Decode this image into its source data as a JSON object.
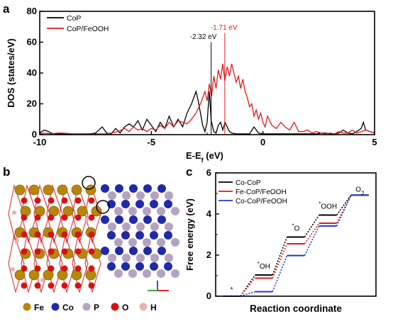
{
  "panels": {
    "a": {
      "label": "a"
    },
    "b": {
      "label": "b"
    },
    "c": {
      "label": "c"
    }
  },
  "chart_data": [
    {
      "panel": "a",
      "type": "line",
      "xlabel": "E-E",
      "xlabel_sub": "f",
      "xlabel_suffix": " (eV)",
      "ylabel": "DOS (states/eV)",
      "xlim": [
        -10,
        5
      ],
      "ylim": [
        0,
        80
      ],
      "xticks": [
        -10,
        -5,
        0,
        5
      ],
      "yticks": [
        0,
        20,
        40,
        60,
        80
      ],
      "legend": "top-left",
      "annotations": [
        {
          "text": "-2.32 eV",
          "x": -2.32,
          "color": "#000000"
        },
        {
          "text": "-1.71 eV",
          "x": -1.71,
          "color": "#e31a1c"
        }
      ],
      "series": [
        {
          "name": "CoP",
          "color": "#000000",
          "x": [
            -10,
            -9.8,
            -9.6,
            -9.5,
            -9.3,
            -9,
            -8.7,
            -8.5,
            -8.2,
            -8,
            -7.8,
            -7.5,
            -7.2,
            -7,
            -6.8,
            -6.6,
            -6.4,
            -6.2,
            -6,
            -5.8,
            -5.6,
            -5.4,
            -5.2,
            -5,
            -4.8,
            -4.6,
            -4.4,
            -4.2,
            -4,
            -3.8,
            -3.6,
            -3.4,
            -3.2,
            -3,
            -2.9,
            -2.8,
            -2.7,
            -2.6,
            -2.5,
            -2.4,
            -2.32,
            -2.2,
            -2.1,
            -2,
            -1.9,
            -1.8,
            -1.7,
            -1.6,
            -1.5,
            -1.4,
            -1.2,
            -1,
            -0.8,
            -0.6,
            -0.4,
            -0.2,
            0,
            0.2,
            0.4,
            0.6,
            0.8,
            1,
            1.2,
            1.4,
            1.6,
            1.8,
            2,
            2.2,
            2.4,
            2.6,
            2.8,
            3,
            3.2,
            3.4,
            3.6,
            3.8,
            4,
            4.2,
            4.4,
            4.5,
            4.6,
            4.8,
            5
          ],
          "y": [
            1,
            3,
            2,
            1,
            0.5,
            0.5,
            0.5,
            0.5,
            0.5,
            0.5,
            0.5,
            1,
            5,
            1,
            0.5,
            4,
            1,
            5,
            7,
            5,
            9,
            3,
            10,
            6,
            2,
            8,
            4,
            12,
            5,
            10,
            5,
            14,
            20,
            28,
            22,
            14,
            6,
            2,
            8,
            28,
            9,
            2,
            1,
            6,
            8,
            3,
            8,
            5,
            2,
            1,
            0.5,
            0.5,
            0.5,
            0.5,
            5,
            1,
            0.5,
            0.5,
            0.5,
            0.5,
            0.5,
            0.5,
            0.5,
            0.5,
            0.5,
            0.5,
            0.5,
            0.5,
            0.5,
            1,
            1,
            0.5,
            0.5,
            1,
            3,
            1,
            0.5,
            2,
            4,
            8,
            3,
            2,
            1
          ]
        },
        {
          "name": "CoP/FeOOH",
          "color": "#e31a1c",
          "x": [
            -10,
            -9.8,
            -9.5,
            -9.2,
            -9,
            -8.5,
            -8,
            -7.5,
            -7,
            -6.8,
            -6.5,
            -6.2,
            -6,
            -5.8,
            -5.6,
            -5.4,
            -5.2,
            -5,
            -4.8,
            -4.6,
            -4.4,
            -4.2,
            -4,
            -3.8,
            -3.6,
            -3.4,
            -3.2,
            -3,
            -2.8,
            -2.6,
            -2.5,
            -2.4,
            -2.3,
            -2.2,
            -2.1,
            -2,
            -1.9,
            -1.8,
            -1.71,
            -1.6,
            -1.5,
            -1.4,
            -1.3,
            -1.2,
            -1.1,
            -1,
            -0.9,
            -0.8,
            -0.7,
            -0.6,
            -0.5,
            -0.4,
            -0.3,
            -0.2,
            -0.1,
            0,
            0.1,
            0.2,
            0.4,
            0.6,
            0.8,
            1,
            1.2,
            1.4,
            1.6,
            1.8,
            2,
            2.2,
            2.4,
            2.6,
            2.8,
            3,
            3.2,
            3.4,
            3.6,
            3.8,
            4,
            4.2,
            4.4,
            4.6,
            4.8,
            5
          ],
          "y": [
            0.5,
            1,
            0.5,
            1,
            1,
            0.5,
            0.5,
            0.5,
            0.5,
            1,
            2,
            4,
            2,
            5,
            3,
            4,
            2,
            4,
            3,
            6,
            4,
            8,
            5,
            9,
            8,
            7,
            10,
            14,
            20,
            28,
            22,
            33,
            25,
            38,
            30,
            42,
            36,
            46,
            35,
            44,
            38,
            46,
            40,
            34,
            38,
            30,
            36,
            28,
            24,
            18,
            20,
            12,
            16,
            10,
            14,
            8,
            5,
            12,
            6,
            4,
            8,
            5,
            3,
            8,
            2,
            2,
            3,
            1,
            2,
            1,
            0.5,
            1,
            0.5,
            2,
            1,
            1,
            3,
            1,
            2,
            3,
            2,
            1
          ]
        }
      ]
    },
    {
      "panel": "c",
      "type": "line",
      "xlabel": "Reaction coordinate",
      "ylabel": "Free energy (eV)",
      "ylim": [
        0,
        6
      ],
      "yticks": [
        0,
        2,
        4,
        6
      ],
      "legend": "top-left",
      "steps": [
        "*",
        "*OH",
        "*O",
        "*OOH",
        "O2"
      ],
      "series": [
        {
          "name": "Co-CoP",
          "color": "#000000",
          "values": [
            0,
            1.03,
            2.88,
            3.95,
            4.92
          ]
        },
        {
          "name": "Fe-CoP/FeOOH",
          "color": "#e31a1c",
          "values": [
            0,
            0.88,
            2.55,
            3.55,
            4.92
          ]
        },
        {
          "name": "Co-CoP/FeOOH",
          "color": "#1f3ad6",
          "values": [
            0,
            0.22,
            1.98,
            3.42,
            4.92
          ]
        }
      ]
    }
  ],
  "structure_legend": [
    {
      "label": "Fe",
      "color": "#b8860b"
    },
    {
      "label": "Co",
      "color": "#1f2aa8"
    },
    {
      "label": "P",
      "color": "#b4a3c0"
    },
    {
      "label": "O",
      "color": "#d41414"
    },
    {
      "label": "H",
      "color": "#e8b0b0"
    }
  ]
}
